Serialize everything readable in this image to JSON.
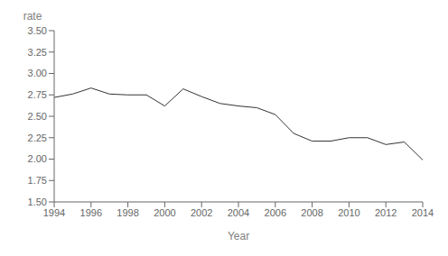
{
  "chart_data": {
    "type": "line",
    "x": [
      1994,
      1995,
      1996,
      1997,
      1998,
      1999,
      2000,
      2001,
      2002,
      2003,
      2004,
      2005,
      2006,
      2007,
      2008,
      2009,
      2010,
      2011,
      2012,
      2013,
      2014
    ],
    "values": [
      2.72,
      2.76,
      2.83,
      2.76,
      2.75,
      2.75,
      2.62,
      2.82,
      2.73,
      2.65,
      2.62,
      2.6,
      2.52,
      2.3,
      2.21,
      2.21,
      2.25,
      2.25,
      2.17,
      2.2,
      1.99
    ],
    "xlabel": "Year",
    "ylabel": "rate",
    "xlim": [
      1994,
      2014
    ],
    "ylim": [
      1.5,
      3.5
    ],
    "xticks": [
      1994,
      1996,
      1998,
      2000,
      2002,
      2004,
      2006,
      2008,
      2010,
      2012,
      2014
    ],
    "yticks": [
      {
        "value": 1.5,
        "label": "1.50"
      },
      1.75,
      {
        "value": 2,
        "label": "2.00"
      },
      2.25,
      {
        "value": 2.5,
        "label": "2.50"
      },
      2.75,
      {
        "value": 3,
        "label": "3.00"
      },
      3.25,
      {
        "value": 3.5,
        "label": "3.50"
      }
    ],
    "color": "#333333",
    "grid": false
  }
}
